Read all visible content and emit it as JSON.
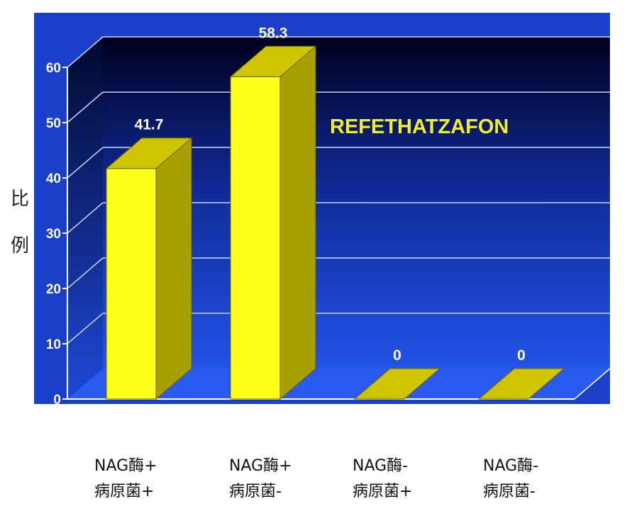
{
  "chart_data": {
    "type": "bar",
    "categories": [
      {
        "line1": "NAG酶+",
        "line2": "病原菌+"
      },
      {
        "line1": "NAG酶+",
        "line2": "病原菌-"
      },
      {
        "line1": "NAG酶-",
        "line2": "病原菌+"
      },
      {
        "line1": "NAG酶-",
        "line2": "病原菌-"
      }
    ],
    "values": [
      41.7,
      58.3,
      0,
      0
    ],
    "data_labels": [
      "41.7",
      "58.3",
      "0",
      "0"
    ],
    "ylabel": "比例",
    "ylim": [
      0,
      60
    ],
    "yticks": [
      "0",
      "10",
      "20",
      "30",
      "40",
      "50",
      "60"
    ],
    "annotation": "REFETHATZAFON",
    "grid": true,
    "three_d": true,
    "colors": {
      "bar_front": "#ffff1a",
      "bar_side": "#a8a000",
      "bar_top": "#cfc400",
      "bg_top": "#00001e",
      "bg_bottom": "#2352e8",
      "annotation": "#f2ee2a"
    }
  }
}
